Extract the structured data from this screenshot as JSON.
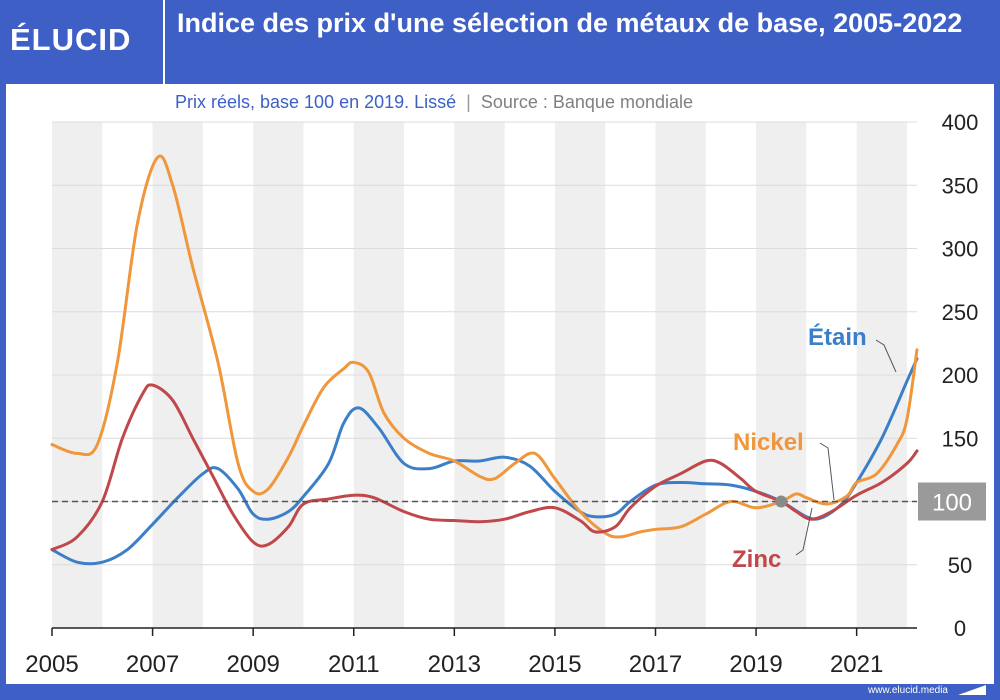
{
  "header": {
    "logo": "ÉLUCID",
    "title": "Indice des prix d'une sélection de métaux de base, 2005-2022"
  },
  "subtitle": {
    "text": "Prix réels, base 100 en 2019. Lissé",
    "separator": "|",
    "source": "Source : Banque mondiale"
  },
  "footer": {
    "url": "www.elucid.media"
  },
  "chart_data": {
    "type": "line",
    "x_ticks": [
      "2005",
      "2007",
      "2009",
      "2011",
      "2013",
      "2015",
      "2017",
      "2019",
      "2021"
    ],
    "y_ticks": [
      "0",
      "50",
      "100",
      "150",
      "200",
      "250",
      "300",
      "350",
      "400"
    ],
    "xlim": [
      2005,
      2022.2
    ],
    "ylim": [
      0,
      400
    ],
    "y_axis_side": "right",
    "grid": "horizontal",
    "background": "alternating vertical bands per 2 years",
    "reference_line": {
      "value": 100,
      "label": "100",
      "style": "dashed"
    },
    "marker": {
      "x": 2019.5,
      "y": 100
    },
    "series": [
      {
        "name": "Étain",
        "color": "#3c7fc9",
        "points": [
          [
            2005.0,
            62
          ],
          [
            2005.5,
            52
          ],
          [
            2006.0,
            52
          ],
          [
            2006.5,
            62
          ],
          [
            2007.0,
            82
          ],
          [
            2007.5,
            103
          ],
          [
            2008.0,
            122
          ],
          [
            2008.3,
            126
          ],
          [
            2008.7,
            110
          ],
          [
            2009.0,
            90
          ],
          [
            2009.3,
            86
          ],
          [
            2009.7,
            92
          ],
          [
            2010.0,
            104
          ],
          [
            2010.5,
            130
          ],
          [
            2010.8,
            162
          ],
          [
            2011.1,
            174
          ],
          [
            2011.5,
            158
          ],
          [
            2012.0,
            130
          ],
          [
            2012.5,
            126
          ],
          [
            2013.0,
            132
          ],
          [
            2013.5,
            132
          ],
          [
            2014.0,
            135
          ],
          [
            2014.5,
            128
          ],
          [
            2015.0,
            108
          ],
          [
            2015.5,
            92
          ],
          [
            2015.8,
            88
          ],
          [
            2016.2,
            90
          ],
          [
            2016.5,
            100
          ],
          [
            2017.0,
            113
          ],
          [
            2017.5,
            115
          ],
          [
            2018.0,
            114
          ],
          [
            2018.5,
            113
          ],
          [
            2019.0,
            108
          ],
          [
            2019.5,
            100
          ],
          [
            2020.0,
            88
          ],
          [
            2020.3,
            87
          ],
          [
            2020.7,
            98
          ],
          [
            2021.0,
            115
          ],
          [
            2021.5,
            150
          ],
          [
            2022.0,
            195
          ],
          [
            2022.2,
            213
          ]
        ]
      },
      {
        "name": "Nickel",
        "color": "#f0963b",
        "points": [
          [
            2005.0,
            145
          ],
          [
            2005.5,
            138
          ],
          [
            2005.9,
            145
          ],
          [
            2006.3,
            210
          ],
          [
            2006.7,
            320
          ],
          [
            2007.1,
            372
          ],
          [
            2007.4,
            350
          ],
          [
            2007.8,
            285
          ],
          [
            2008.3,
            210
          ],
          [
            2008.7,
            130
          ],
          [
            2009.0,
            108
          ],
          [
            2009.3,
            110
          ],
          [
            2009.7,
            135
          ],
          [
            2010.0,
            160
          ],
          [
            2010.4,
            190
          ],
          [
            2010.8,
            205
          ],
          [
            2011.0,
            210
          ],
          [
            2011.3,
            202
          ],
          [
            2011.6,
            170
          ],
          [
            2012.0,
            150
          ],
          [
            2012.5,
            138
          ],
          [
            2013.0,
            132
          ],
          [
            2013.5,
            120
          ],
          [
            2013.8,
            118
          ],
          [
            2014.2,
            130
          ],
          [
            2014.6,
            138
          ],
          [
            2015.0,
            118
          ],
          [
            2015.5,
            92
          ],
          [
            2016.0,
            75
          ],
          [
            2016.3,
            72
          ],
          [
            2016.7,
            76
          ],
          [
            2017.0,
            78
          ],
          [
            2017.5,
            80
          ],
          [
            2018.0,
            90
          ],
          [
            2018.5,
            100
          ],
          [
            2019.0,
            95
          ],
          [
            2019.5,
            100
          ],
          [
            2019.8,
            106
          ],
          [
            2020.0,
            103
          ],
          [
            2020.4,
            98
          ],
          [
            2020.8,
            104
          ],
          [
            2021.0,
            115
          ],
          [
            2021.4,
            122
          ],
          [
            2021.8,
            145
          ],
          [
            2022.0,
            165
          ],
          [
            2022.2,
            220
          ]
        ]
      },
      {
        "name": "Zinc",
        "color": "#c0474a",
        "points": [
          [
            2005.0,
            62
          ],
          [
            2005.5,
            72
          ],
          [
            2006.0,
            100
          ],
          [
            2006.4,
            150
          ],
          [
            2006.8,
            185
          ],
          [
            2007.0,
            192
          ],
          [
            2007.4,
            180
          ],
          [
            2007.8,
            150
          ],
          [
            2008.2,
            120
          ],
          [
            2008.6,
            90
          ],
          [
            2009.0,
            68
          ],
          [
            2009.3,
            66
          ],
          [
            2009.7,
            80
          ],
          [
            2010.0,
            98
          ],
          [
            2010.5,
            102
          ],
          [
            2011.0,
            105
          ],
          [
            2011.4,
            103
          ],
          [
            2012.0,
            92
          ],
          [
            2012.5,
            86
          ],
          [
            2013.0,
            85
          ],
          [
            2013.5,
            84
          ],
          [
            2014.0,
            86
          ],
          [
            2014.5,
            92
          ],
          [
            2015.0,
            95
          ],
          [
            2015.5,
            85
          ],
          [
            2015.8,
            76
          ],
          [
            2016.2,
            80
          ],
          [
            2016.5,
            95
          ],
          [
            2017.0,
            112
          ],
          [
            2017.5,
            122
          ],
          [
            2018.0,
            132
          ],
          [
            2018.3,
            130
          ],
          [
            2018.7,
            118
          ],
          [
            2019.0,
            108
          ],
          [
            2019.5,
            100
          ],
          [
            2019.8,
            92
          ],
          [
            2020.1,
            86
          ],
          [
            2020.5,
            92
          ],
          [
            2021.0,
            105
          ],
          [
            2021.5,
            115
          ],
          [
            2022.0,
            130
          ],
          [
            2022.2,
            140
          ]
        ]
      }
    ],
    "labels": [
      {
        "series": "Étain",
        "text": "Étain"
      },
      {
        "series": "Nickel",
        "text": "Nickel"
      },
      {
        "series": "Zinc",
        "text": "Zinc"
      }
    ]
  }
}
